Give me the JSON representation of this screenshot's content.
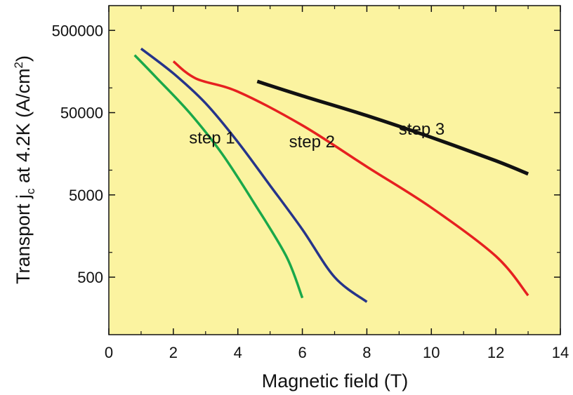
{
  "chart_data": {
    "type": "line",
    "xlabel": "Magnetic field (T)",
    "ylabel": {
      "prefix": "Transport j",
      "sub": "c",
      "middle": " at 4.2K (A/cm",
      "sup": "2",
      "suffix": ")"
    },
    "xlim": [
      0,
      14
    ],
    "ylim": [
      100,
      1000000
    ],
    "y_scale": "log",
    "x_ticks": [
      0,
      2,
      4,
      6,
      8,
      10,
      12,
      14
    ],
    "x_tick_labels": [
      "0",
      "2",
      "4",
      "6",
      "8",
      "10",
      "12",
      "14"
    ],
    "y_ticks": [
      500,
      5000,
      50000,
      500000
    ],
    "y_tick_labels": [
      "500",
      "5000",
      "50000",
      "500000"
    ],
    "plot_background": "#fbf3a0",
    "grid": false,
    "series": [
      {
        "color": "#1aa84a",
        "x": [
          0.8,
          1.5,
          2.5,
          3.5,
          4.5,
          5.5,
          6.0
        ],
        "y": [
          250000,
          130000,
          50000,
          16000,
          4000,
          900,
          280
        ]
      },
      {
        "color": "#26348a",
        "x": [
          1.0,
          2.0,
          3.0,
          4.0,
          5.0,
          6.0,
          7.0,
          8.0
        ],
        "y": [
          300000,
          150000,
          65000,
          22000,
          6500,
          1900,
          500,
          250
        ]
      },
      {
        "color": "#e62020",
        "x": [
          2.0,
          2.7,
          4.0,
          6.0,
          8.0,
          10.0,
          12.0,
          13.0
        ],
        "y": [
          210000,
          130000,
          90000,
          35000,
          11000,
          3500,
          900,
          300
        ]
      },
      {
        "color": "#111111",
        "x": [
          4.6,
          6.0,
          8.0,
          10.0,
          12.0,
          13.0
        ],
        "y": [
          120000,
          80000,
          46000,
          25000,
          13000,
          9000
        ]
      }
    ],
    "annotations": [
      {
        "text": "step 1",
        "x": 3.2,
        "y": 21000
      },
      {
        "text": "step 2",
        "x": 6.3,
        "y": 19000
      },
      {
        "text": "step 3",
        "x": 9.7,
        "y": 27000
      }
    ]
  }
}
